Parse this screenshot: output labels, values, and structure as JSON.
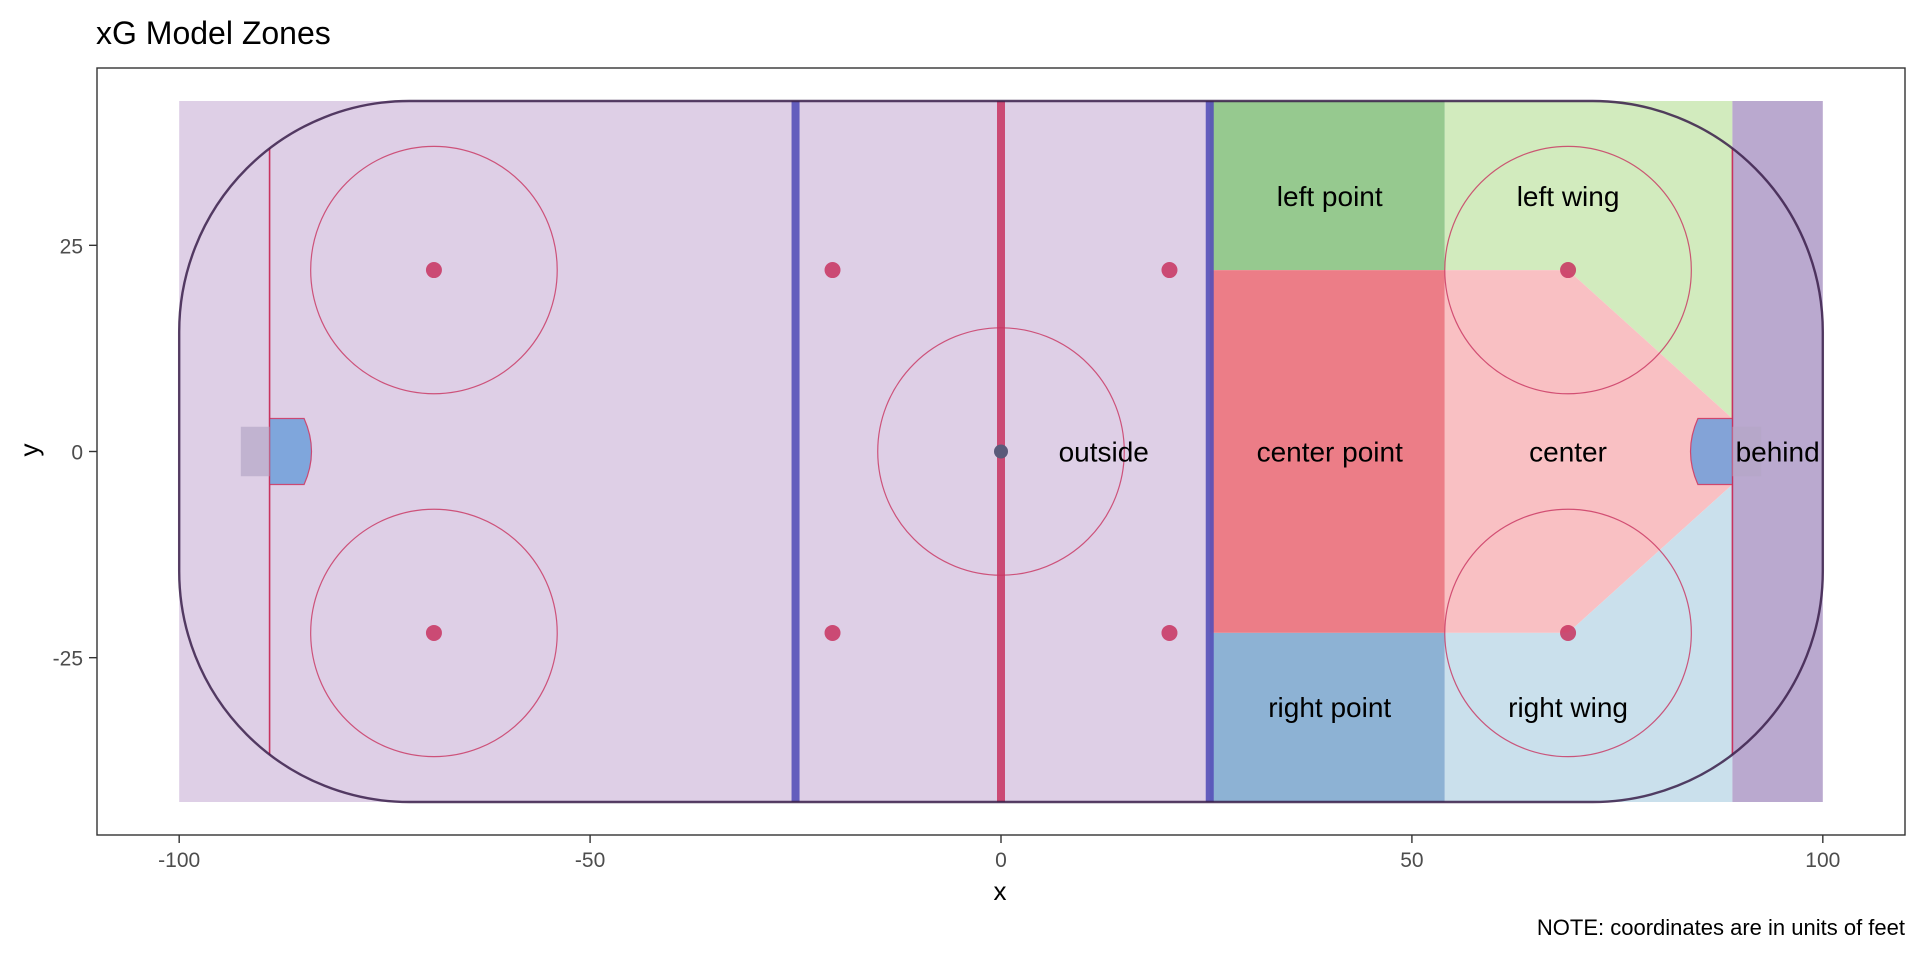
{
  "chart_data": {
    "type": "zone-map",
    "title": "xG Model Zones",
    "caption": "NOTE: coordinates are in units of feet",
    "xlabel": "x",
    "ylabel": "y",
    "xlim": [
      -110,
      110
    ],
    "ylim": [
      -46.5,
      46.5
    ],
    "x_ticks": [
      {
        "value": -100,
        "label": "-100"
      },
      {
        "value": -50,
        "label": "-50"
      },
      {
        "value": 0,
        "label": "0"
      },
      {
        "value": 50,
        "label": "50"
      },
      {
        "value": 100,
        "label": "100"
      }
    ],
    "y_ticks": [
      {
        "value": 25,
        "label": "25"
      },
      {
        "value": 0,
        "label": "0"
      },
      {
        "value": -25,
        "label": "-25"
      }
    ],
    "grid": false,
    "zones": [
      {
        "id": "outside",
        "label": "outside",
        "color": "#DECFE6",
        "polygon": [
          [
            -100,
            -42.5
          ],
          [
            25.4,
            -42.5
          ],
          [
            25.4,
            42.5
          ],
          [
            -100,
            42.5
          ]
        ],
        "label_at": [
          12.5,
          0
        ]
      },
      {
        "id": "left-point",
        "label": "left point",
        "color": "#96C98F",
        "polygon": [
          [
            25.4,
            22
          ],
          [
            54,
            22
          ],
          [
            54,
            42.5
          ],
          [
            25.4,
            42.5
          ]
        ],
        "label_at": [
          40,
          31
        ]
      },
      {
        "id": "center-point",
        "label": "center point",
        "color": "#EC7D87",
        "polygon": [
          [
            25.4,
            -22
          ],
          [
            54,
            -22
          ],
          [
            54,
            22
          ],
          [
            25.4,
            22
          ]
        ],
        "label_at": [
          40,
          0
        ]
      },
      {
        "id": "right-point",
        "label": "right point",
        "color": "#8DB2D4",
        "polygon": [
          [
            25.4,
            -42.5
          ],
          [
            54,
            -42.5
          ],
          [
            54,
            -22
          ],
          [
            25.4,
            -22
          ]
        ],
        "label_at": [
          40,
          -31
        ]
      },
      {
        "id": "left-wing",
        "label": "left wing",
        "color": "#D2EBBE",
        "polygon": [
          [
            54,
            22
          ],
          [
            69,
            22
          ],
          [
            89,
            4
          ],
          [
            89,
            42.5
          ],
          [
            54,
            42.5
          ]
        ],
        "label_at": [
          69,
          31
        ]
      },
      {
        "id": "center",
        "label": "center",
        "color": "#F9C0C3",
        "polygon": [
          [
            54,
            -22
          ],
          [
            69,
            -22
          ],
          [
            89,
            -4
          ],
          [
            89,
            4
          ],
          [
            69,
            22
          ],
          [
            54,
            22
          ]
        ],
        "label_at": [
          69,
          0
        ]
      },
      {
        "id": "right-wing",
        "label": "right wing",
        "color": "#CAE0EC",
        "polygon": [
          [
            54,
            -42.5
          ],
          [
            89,
            -42.5
          ],
          [
            89,
            -4
          ],
          [
            69,
            -22
          ],
          [
            54,
            -22
          ]
        ],
        "label_at": [
          69,
          -31
        ]
      },
      {
        "id": "behind",
        "label": "behind",
        "color": "#BAA9CF",
        "polygon": [
          [
            89,
            -42.5
          ],
          [
            100,
            -42.5
          ],
          [
            100,
            42.5
          ],
          [
            89,
            42.5
          ]
        ],
        "label_at": [
          94.5,
          0
        ]
      }
    ],
    "rink": {
      "half_length": 100,
      "half_width": 42.5,
      "corner_radius": 28,
      "boards_color": "#3A1F4A",
      "red_color": "#C8325F",
      "blue_color": "#5550B8",
      "crease_color": "#6F9FDB",
      "goal_color": "#B5A7C6",
      "goal_lines_x": [
        -89,
        89
      ],
      "blue_lines_x": [
        -25,
        25.4
      ],
      "center_line_x": 0,
      "center_circle": {
        "x": 0,
        "y": 0,
        "r": 15
      },
      "faceoff_circles": [
        {
          "x": -69,
          "y": 22,
          "r": 15
        },
        {
          "x": -69,
          "y": -22,
          "r": 15
        },
        {
          "x": 69,
          "y": 22,
          "r": 15
        },
        {
          "x": 69,
          "y": -22,
          "r": 15
        }
      ],
      "faceoff_dots": [
        {
          "x": -69,
          "y": 22
        },
        {
          "x": -69,
          "y": -22
        },
        {
          "x": -20.5,
          "y": 22
        },
        {
          "x": -20.5,
          "y": -22
        },
        {
          "x": 20.5,
          "y": 22
        },
        {
          "x": 20.5,
          "y": -22
        },
        {
          "x": 69,
          "y": 22
        },
        {
          "x": 69,
          "y": -22
        }
      ],
      "center_dot": {
        "x": 0,
        "y": 0
      },
      "creases": [
        {
          "side": "left",
          "goal_line_x": -89,
          "half_width": 4,
          "depth": 6
        },
        {
          "side": "right",
          "goal_line_x": 89,
          "half_width": 4,
          "depth": 6
        }
      ],
      "nets": [
        {
          "x0": -92.5,
          "x1": -89,
          "y0": -3,
          "y1": 3
        },
        {
          "x0": 89,
          "x1": 92.5,
          "y0": -3,
          "y1": 3
        }
      ]
    }
  }
}
